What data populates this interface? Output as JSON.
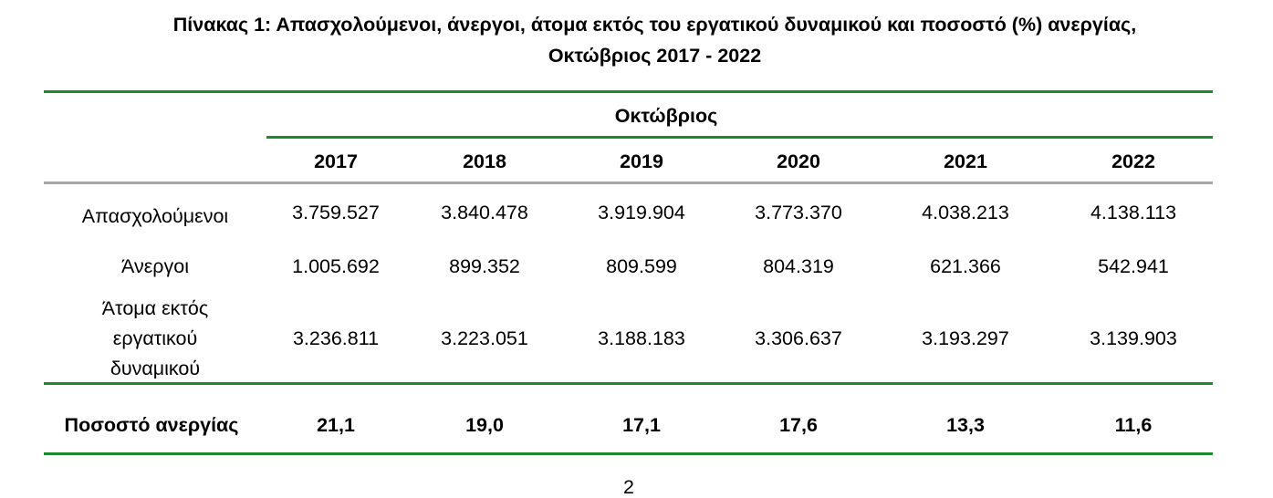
{
  "title": {
    "line1": "Πίνακας 1: Απασχολούμενοι, άνεργοι, άτομα εκτός του εργατικού δυναμικού και ποσοστό (%) ανεργίας,",
    "line2": "Οκτώβριος 2017 - 2022"
  },
  "table": {
    "group_header": "Οκτώβριος",
    "years": [
      "2017",
      "2018",
      "2019",
      "2020",
      "2021",
      "2022"
    ],
    "rows": [
      {
        "label": "Απασχολούμενοι",
        "values": [
          "3.759.527",
          "3.840.478",
          "3.919.904",
          "3.773.370",
          "4.038.213",
          "4.138.113"
        ]
      },
      {
        "label": "Άνεργοι",
        "values": [
          "1.005.692",
          "899.352",
          "809.599",
          "804.319",
          "621.366",
          "542.941"
        ]
      },
      {
        "label_lines": [
          "Άτομα εκτός",
          "εργατικού",
          "δυναμικού"
        ],
        "values": [
          "3.236.811",
          "3.223.051",
          "3.188.183",
          "3.306.637",
          "3.193.297",
          "3.139.903"
        ]
      }
    ],
    "total_row": {
      "label": "Ποσοστό ανεργίας",
      "values": [
        "21,1",
        "19,0",
        "17,1",
        "17,6",
        "13,3",
        "11,6"
      ]
    }
  },
  "page_number": "2",
  "colors": {
    "rule_green": "#1e8a2e",
    "rule_gray": "#a6a6a6"
  }
}
